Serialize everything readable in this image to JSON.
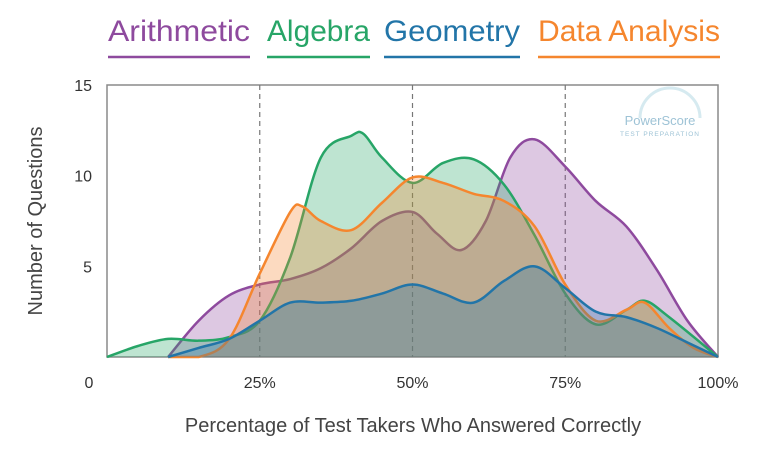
{
  "chart_data": {
    "type": "area",
    "title": "",
    "xlabel": "Percentage of Test Takers Who Answered Correctly",
    "ylabel": "Number of Questions",
    "xlim": [
      0,
      100
    ],
    "ylim": [
      0,
      15
    ],
    "x_ticks": [
      {
        "v": 0,
        "label": "0"
      },
      {
        "v": 25,
        "label": "25%"
      },
      {
        "v": 50,
        "label": "50%"
      },
      {
        "v": 75,
        "label": "75%"
      },
      {
        "v": 100,
        "label": "100%"
      }
    ],
    "y_ticks": [
      {
        "v": 5,
        "label": "5"
      },
      {
        "v": 10,
        "label": "10"
      },
      {
        "v": 15,
        "label": "15"
      }
    ],
    "reference_lines_x": [
      25,
      50,
      75
    ],
    "legend_placement": "top",
    "watermark": {
      "line1": "PowerScore",
      "line2": "TEST PREPARATION"
    },
    "series": [
      {
        "name": "Arithmetic",
        "color": "#8e4a9e",
        "x": [
          10,
          15,
          20,
          25,
          30,
          35,
          40,
          45,
          50,
          54,
          58,
          62,
          66,
          70,
          75,
          80,
          85,
          90,
          95,
          100
        ],
        "y": [
          0,
          2,
          3.4,
          4,
          4.3,
          4.9,
          6,
          7.5,
          8,
          6.8,
          5.9,
          7.5,
          11,
          12,
          10.5,
          8.6,
          7.2,
          4.8,
          2,
          0
        ]
      },
      {
        "name": "Algebra",
        "color": "#27a567",
        "x": [
          0,
          5,
          10,
          15,
          20,
          25,
          30,
          35,
          40,
          42,
          45,
          50,
          55,
          60,
          65,
          70,
          75,
          80,
          85,
          88,
          92,
          100
        ],
        "y": [
          0,
          0.6,
          1,
          0.9,
          1.1,
          2,
          5.5,
          11,
          12.2,
          12.3,
          11,
          9.6,
          10.7,
          10.9,
          9.5,
          6.7,
          3.5,
          1.8,
          2.6,
          3.1,
          2.2,
          0
        ]
      },
      {
        "name": "Geometry",
        "color": "#2275a8",
        "x": [
          10,
          15,
          20,
          25,
          30,
          35,
          40,
          45,
          50,
          55,
          60,
          65,
          70,
          75,
          80,
          85,
          90,
          95,
          100
        ],
        "y": [
          0,
          0.5,
          1,
          2,
          3,
          3,
          3.1,
          3.5,
          4,
          3.5,
          3,
          4.2,
          5,
          3.8,
          2.5,
          2.2,
          1.6,
          0.8,
          0
        ]
      },
      {
        "name": "Data Analysis",
        "color": "#f5862e",
        "x": [
          10,
          15,
          20,
          25,
          30,
          32,
          35,
          40,
          45,
          50,
          55,
          60,
          65,
          70,
          75,
          80,
          85,
          88,
          92,
          96,
          100
        ],
        "y": [
          0,
          0,
          1,
          4.6,
          8,
          8.3,
          7.5,
          7,
          8.5,
          9.9,
          9.6,
          9,
          8.6,
          7.2,
          4,
          2,
          2.6,
          3,
          1.6,
          0.5,
          0
        ]
      }
    ]
  }
}
